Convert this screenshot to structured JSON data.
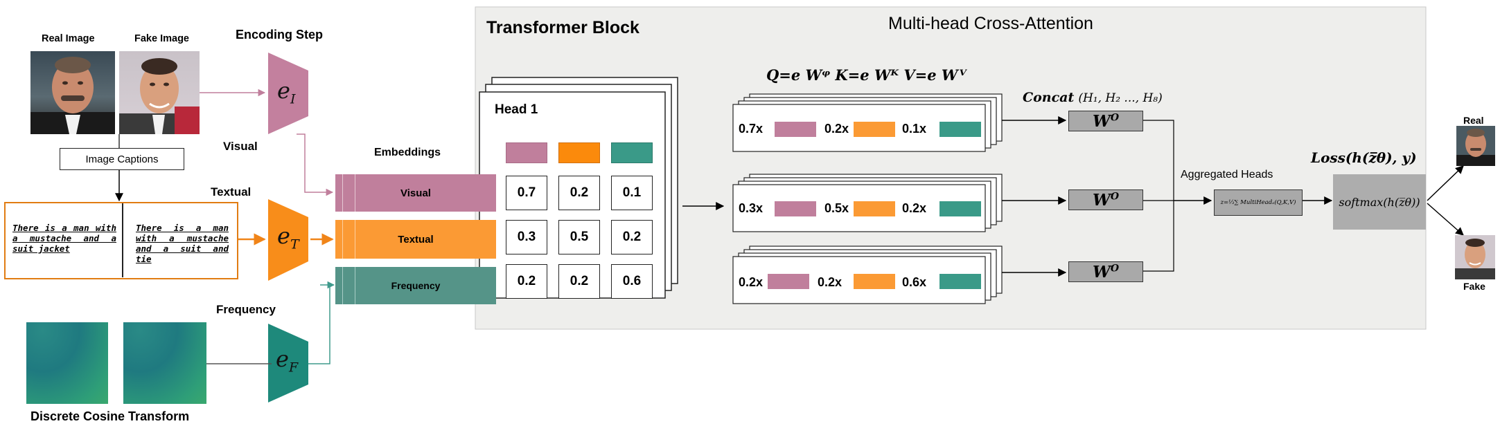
{
  "labels": {
    "real_image": "Real Image",
    "fake_image": "Fake Image",
    "encoding_step": "Encoding Step",
    "image_captions": "Image Captions",
    "visual": "Visual",
    "textual": "Textual",
    "frequency": "Frequency",
    "dct": "Discrete Cosine Transform",
    "embeddings": "Embeddings",
    "transformer_block": "Transformer Block",
    "mhca": "Multi-head Cross-Attention",
    "head1": "Head 1",
    "aggregated_heads": "Aggregated Heads",
    "real_out": "Real",
    "fake_out": "Fake"
  },
  "captions": {
    "real": "There is a man with a mustache and a suit jacket",
    "fake": "There is a man with a mustache and a suit and tie"
  },
  "encoders": {
    "image": {
      "base": "e",
      "sub": "I"
    },
    "text": {
      "base": "e",
      "sub": "T"
    },
    "freq": {
      "base": "e",
      "sub": "F"
    }
  },
  "embeddings": {
    "visual": "Visual",
    "textual": "Textual",
    "frequency": "Frequency"
  },
  "head1_matrix": [
    [
      "0.7",
      "0.2",
      "0.1"
    ],
    [
      "0.3",
      "0.5",
      "0.2"
    ],
    [
      "0.2",
      "0.2",
      "0.6"
    ]
  ],
  "heads": [
    [
      "0.7x",
      "0.2x",
      "0.1x"
    ],
    [
      "0.3x",
      "0.5x",
      "0.2x"
    ],
    [
      "0.2x",
      "0.2x",
      "0.6x"
    ]
  ],
  "formulas": {
    "qkv": "Q=e Wᵠ  K=e Wᴷ  V=e Wⱽ",
    "concat_word": "Concat",
    "concat_args": "(H₁, H₂ ..., H₈)",
    "wo_base": "W",
    "wo_sup": "O",
    "aggregate": "z=⅓∑ MultiHeadₐ(Q,K,V)",
    "loss": "Loss(h(z̅θ), y)",
    "softmax": "softmax(h(z̅θ))"
  },
  "colors": {
    "visual": "#c07f9c",
    "textual": "#fb9a34",
    "frequency": "#559488",
    "enc_image": "#c3809e",
    "enc_text": "#f88d1a",
    "enc_freq": "#1e897b",
    "panel": "#eeeeec",
    "caption_border": "#e17c12"
  }
}
